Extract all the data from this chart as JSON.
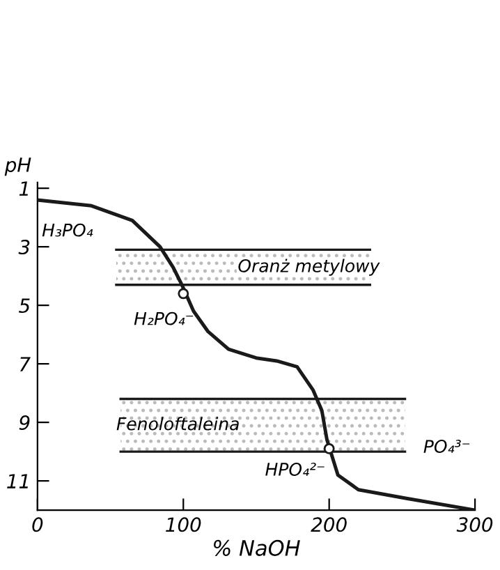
{
  "chart_data": {
    "type": "line",
    "xlabel": "% NaOH",
    "ylabel": "pH",
    "xlim": [
      0,
      300
    ],
    "ylim": [
      12,
      0.8
    ],
    "xticks": [
      0,
      100,
      200,
      300
    ],
    "yticks": [
      1,
      3,
      5,
      7,
      9,
      11
    ],
    "grid": false,
    "legend": false,
    "series": [
      {
        "color": "#1a1a1a",
        "marker": "none",
        "line_style": "solid",
        "x": [
          0,
          37,
          65,
          84,
          93,
          99,
          107,
          117,
          131,
          150,
          164,
          178,
          189,
          195,
          198.5,
          206,
          220,
          253,
          300
        ],
        "values": [
          1.4,
          1.6,
          2.1,
          3.0,
          3.7,
          4.3,
          5.2,
          5.9,
          6.5,
          6.8,
          6.9,
          7.1,
          7.9,
          8.6,
          9.6,
          10.8,
          11.3,
          11.6,
          12.0
        ]
      },
      {
        "type": "scatter",
        "color": "#1a1a1a",
        "marker": "circle",
        "x": [
          100,
          200
        ],
        "values": [
          4.6,
          9.9
        ]
      }
    ],
    "bands": [
      {
        "axis": "y",
        "from": 3.1,
        "to": 4.3,
        "label": "Oranż metylowy",
        "color": "#bbbbbb"
      },
      {
        "axis": "y",
        "from": 8.2,
        "to": 10.0,
        "label": "Fenoloftaleina",
        "color": "#bbbbbb"
      }
    ],
    "annotations": [
      "H₃PO₄",
      "H₂PO₄⁻",
      "HPO₄²⁻",
      "PO₄³⁻"
    ]
  }
}
